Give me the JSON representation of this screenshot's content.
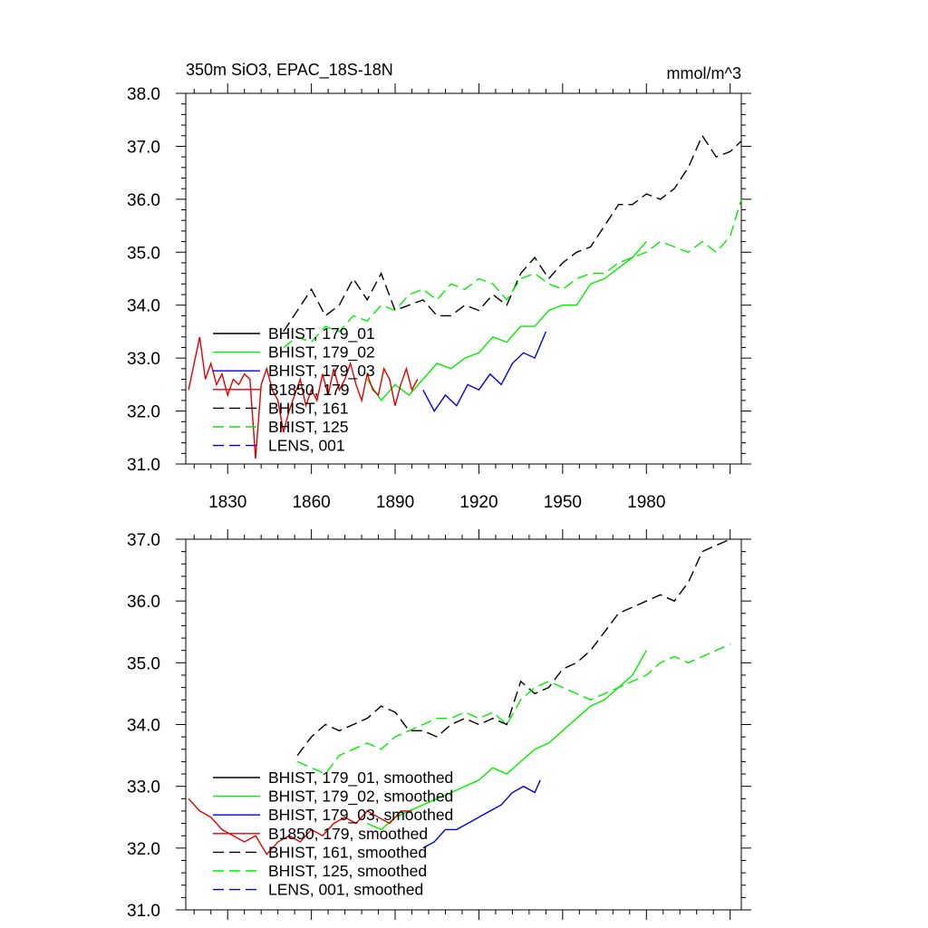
{
  "colors": {
    "black": "#000000",
    "green": "#00ee00",
    "blue": "#0000e0",
    "red": "#e00000"
  },
  "chart_data": [
    {
      "type": "line",
      "title": "350m SiO3, EPAC_18S-18N",
      "units": "mmol/m^3",
      "xlim": [
        1815,
        2014
      ],
      "ylim": [
        31.0,
        38.0
      ],
      "xticks": [
        1830,
        1860,
        1890,
        1920,
        1950,
        1980
      ],
      "xtick_labels": [
        "1830",
        "1860",
        "1890",
        "1920",
        "1950",
        "1980"
      ],
      "yticks": [
        31.0,
        32.0,
        33.0,
        34.0,
        35.0,
        36.0,
        37.0,
        38.0
      ],
      "ytick_labels": [
        "31.0",
        "32.0",
        "33.0",
        "34.0",
        "35.0",
        "36.0",
        "37.0",
        "38.0"
      ],
      "legend_position": "lower-left",
      "series": [
        {
          "name": "BHIST, 179_01",
          "color": "black",
          "dash": "solid",
          "x": [],
          "y": []
        },
        {
          "name": "BHIST, 179_02",
          "color": "green",
          "dash": "solid",
          "x": [
            1880,
            1885,
            1890,
            1895,
            1900,
            1905,
            1910,
            1915,
            1920,
            1925,
            1930,
            1935,
            1940,
            1945,
            1950,
            1955,
            1960,
            1965,
            1970,
            1975,
            1980
          ],
          "y": [
            32.6,
            32.2,
            32.5,
            32.3,
            32.6,
            32.9,
            32.8,
            33.0,
            33.1,
            33.4,
            33.3,
            33.6,
            33.6,
            33.9,
            34.0,
            34.0,
            34.4,
            34.5,
            34.7,
            34.9,
            35.2
          ]
        },
        {
          "name": "BHIST, 179_03",
          "color": "blue",
          "dash": "solid",
          "x": [
            1900,
            1904,
            1908,
            1912,
            1916,
            1920,
            1924,
            1928,
            1932,
            1936,
            1940,
            1944
          ],
          "y": [
            32.4,
            32.0,
            32.3,
            32.1,
            32.5,
            32.4,
            32.7,
            32.5,
            32.9,
            33.1,
            33.0,
            33.5
          ]
        },
        {
          "name": "B1850, 179",
          "color": "red",
          "dash": "solid",
          "x": [
            1816,
            1818,
            1820,
            1822,
            1824,
            1826,
            1828,
            1830,
            1832,
            1834,
            1836,
            1838,
            1840,
            1842,
            1844,
            1846,
            1848,
            1850,
            1852,
            1854,
            1856,
            1858,
            1860,
            1862,
            1864,
            1866,
            1868,
            1870,
            1872,
            1874,
            1876,
            1878,
            1880,
            1882,
            1884,
            1886,
            1888,
            1890,
            1892,
            1894,
            1896,
            1898
          ],
          "y": [
            32.4,
            32.9,
            33.4,
            32.6,
            32.9,
            32.5,
            32.7,
            32.3,
            32.6,
            32.5,
            32.7,
            32.6,
            31.1,
            32.5,
            32.8,
            32.4,
            32.2,
            31.6,
            32.0,
            32.3,
            32.6,
            32.1,
            32.4,
            32.2,
            32.7,
            32.3,
            32.8,
            32.4,
            32.6,
            32.9,
            32.5,
            32.2,
            32.7,
            32.4,
            32.3,
            32.8,
            32.6,
            32.1,
            32.5,
            32.8,
            32.4,
            32.6
          ]
        },
        {
          "name": "BHIST, 161",
          "color": "black",
          "dash": "dashed",
          "x": [
            1850,
            1855,
            1860,
            1865,
            1870,
            1875,
            1880,
            1885,
            1890,
            1895,
            1900,
            1905,
            1910,
            1915,
            1920,
            1925,
            1930,
            1935,
            1940,
            1945,
            1950,
            1955,
            1960,
            1965,
            1970,
            1975,
            1980,
            1985,
            1990,
            1995,
            2000,
            2005,
            2010,
            2014
          ],
          "y": [
            33.5,
            33.9,
            34.3,
            33.8,
            34.0,
            34.5,
            34.1,
            34.6,
            33.9,
            34.0,
            34.1,
            33.8,
            33.8,
            34.0,
            33.9,
            34.2,
            34.0,
            34.6,
            34.9,
            34.5,
            34.8,
            35.0,
            35.1,
            35.5,
            35.9,
            35.9,
            36.1,
            36.0,
            36.2,
            36.6,
            37.2,
            36.8,
            36.9,
            37.1
          ]
        },
        {
          "name": "BHIST, 125",
          "color": "green",
          "dash": "dashed",
          "x": [
            1850,
            1855,
            1860,
            1865,
            1870,
            1875,
            1880,
            1885,
            1890,
            1895,
            1900,
            1905,
            1910,
            1915,
            1920,
            1925,
            1930,
            1935,
            1940,
            1945,
            1950,
            1955,
            1960,
            1965,
            1970,
            1975,
            1980,
            1985,
            1990,
            1995,
            2000,
            2005,
            2010,
            2014
          ],
          "y": [
            33.2,
            33.4,
            33.3,
            33.6,
            33.5,
            33.8,
            33.7,
            34.0,
            33.9,
            34.2,
            34.3,
            34.1,
            34.4,
            34.3,
            34.5,
            34.4,
            34.1,
            34.5,
            34.6,
            34.4,
            34.3,
            34.5,
            34.6,
            34.6,
            34.8,
            34.9,
            35.0,
            35.2,
            35.1,
            35.0,
            35.2,
            35.0,
            35.3,
            36.0
          ]
        },
        {
          "name": "LENS, 001",
          "color": "blue",
          "dash": "dashed",
          "x": [],
          "y": []
        }
      ]
    },
    {
      "type": "line",
      "xlim": [
        1815,
        2014
      ],
      "ylim": [
        31.0,
        37.0
      ],
      "yticks": [
        31.0,
        32.0,
        33.0,
        34.0,
        35.0,
        36.0,
        37.0
      ],
      "ytick_labels": [
        "31.0",
        "32.0",
        "33.0",
        "34.0",
        "35.0",
        "36.0",
        "37.0"
      ],
      "legend_position": "lower-left",
      "series": [
        {
          "name": "BHIST, 179_01, smoothed",
          "color": "black",
          "dash": "solid",
          "x": [],
          "y": []
        },
        {
          "name": "BHIST, 179_02, smoothed",
          "color": "green",
          "dash": "solid",
          "x": [
            1880,
            1885,
            1890,
            1895,
            1900,
            1905,
            1910,
            1915,
            1920,
            1925,
            1930,
            1935,
            1940,
            1945,
            1950,
            1955,
            1960,
            1965,
            1970,
            1975,
            1980
          ],
          "y": [
            32.4,
            32.3,
            32.5,
            32.6,
            32.7,
            32.8,
            32.9,
            33.0,
            33.1,
            33.3,
            33.2,
            33.4,
            33.6,
            33.7,
            33.9,
            34.1,
            34.3,
            34.4,
            34.6,
            34.8,
            35.2
          ]
        },
        {
          "name": "BHIST, 179_03, smoothed",
          "color": "blue",
          "dash": "solid",
          "x": [
            1900,
            1904,
            1908,
            1912,
            1916,
            1920,
            1924,
            1928,
            1932,
            1936,
            1940,
            1942
          ],
          "y": [
            32.0,
            32.1,
            32.3,
            32.3,
            32.4,
            32.5,
            32.6,
            32.7,
            32.9,
            33.0,
            32.9,
            33.1
          ]
        },
        {
          "name": "B1850, 179, smoothed",
          "color": "red",
          "dash": "solid",
          "x": [
            1816,
            1820,
            1824,
            1828,
            1832,
            1836,
            1840,
            1844,
            1848,
            1852,
            1856,
            1860,
            1864,
            1868,
            1872,
            1876,
            1880,
            1884,
            1888,
            1892,
            1896
          ],
          "y": [
            32.8,
            32.6,
            32.5,
            32.3,
            32.2,
            32.1,
            32.2,
            31.9,
            32.1,
            32.2,
            32.1,
            32.3,
            32.2,
            32.4,
            32.5,
            32.4,
            32.6,
            32.5,
            32.4,
            32.6,
            32.6
          ]
        },
        {
          "name": "BHIST, 161, smoothed",
          "color": "black",
          "dash": "dashed",
          "x": [
            1855,
            1860,
            1865,
            1870,
            1875,
            1880,
            1885,
            1890,
            1895,
            1900,
            1905,
            1910,
            1915,
            1920,
            1925,
            1930,
            1935,
            1940,
            1945,
            1950,
            1955,
            1960,
            1965,
            1970,
            1975,
            1980,
            1985,
            1990,
            1995,
            2000,
            2005,
            2010
          ],
          "y": [
            33.5,
            33.8,
            34.0,
            33.9,
            34.0,
            34.1,
            34.3,
            34.2,
            33.9,
            33.9,
            33.8,
            34.0,
            34.1,
            34.0,
            34.1,
            34.0,
            34.7,
            34.5,
            34.6,
            34.9,
            35.0,
            35.2,
            35.5,
            35.8,
            35.9,
            36.0,
            36.1,
            36.0,
            36.3,
            36.8,
            36.9,
            37.0
          ]
        },
        {
          "name": "BHIST, 125, smoothed",
          "color": "green",
          "dash": "dashed",
          "x": [
            1855,
            1860,
            1865,
            1870,
            1875,
            1880,
            1885,
            1890,
            1895,
            1900,
            1905,
            1910,
            1915,
            1920,
            1925,
            1930,
            1935,
            1940,
            1945,
            1950,
            1955,
            1960,
            1965,
            1970,
            1975,
            1980,
            1985,
            1990,
            1995,
            2000,
            2005,
            2010
          ],
          "y": [
            33.4,
            33.3,
            33.2,
            33.5,
            33.6,
            33.7,
            33.6,
            33.8,
            33.9,
            34.0,
            34.1,
            34.1,
            34.2,
            34.1,
            34.2,
            34.0,
            34.4,
            34.6,
            34.7,
            34.6,
            34.5,
            34.4,
            34.5,
            34.6,
            34.7,
            34.8,
            35.0,
            35.1,
            35.0,
            35.1,
            35.2,
            35.3
          ]
        },
        {
          "name": "LENS, 001, smoothed",
          "color": "blue",
          "dash": "dashed",
          "x": [],
          "y": []
        }
      ]
    }
  ]
}
